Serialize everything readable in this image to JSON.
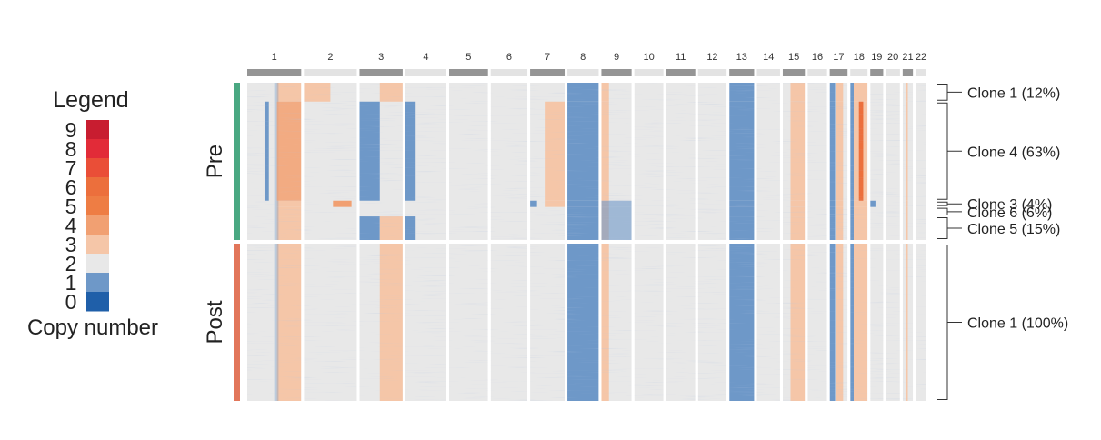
{
  "chart_data": {
    "type": "heatmap",
    "title": "",
    "xlabel": "",
    "ylabel": "",
    "legend": {
      "title": "Legend",
      "caption": "Copy number",
      "placement": "left",
      "levels": [
        {
          "value": "9",
          "color": "#c81d30"
        },
        {
          "value": "8",
          "color": "#e22b38"
        },
        {
          "value": "7",
          "color": "#ea4e37"
        },
        {
          "value": "6",
          "color": "#ec6f3c"
        },
        {
          "value": "5",
          "color": "#ee7d44"
        },
        {
          "value": "4",
          "color": "#f1a072"
        },
        {
          "value": "3",
          "color": "#f5c6a8"
        },
        {
          "value": "2",
          "color": "#e8e8e8"
        },
        {
          "value": "1",
          "color": "#6e98c8"
        },
        {
          "value": "0",
          "color": "#1f5fa9"
        }
      ]
    },
    "chromosomes": [
      {
        "label": "1",
        "rel": 1.0
      },
      {
        "label": "2",
        "rel": 0.98
      },
      {
        "label": "3",
        "rel": 0.8
      },
      {
        "label": "4",
        "rel": 0.76
      },
      {
        "label": "5",
        "rel": 0.72
      },
      {
        "label": "6",
        "rel": 0.68
      },
      {
        "label": "7",
        "rel": 0.64
      },
      {
        "label": "8",
        "rel": 0.58
      },
      {
        "label": "9",
        "rel": 0.56
      },
      {
        "label": "10",
        "rel": 0.54
      },
      {
        "label": "11",
        "rel": 0.54
      },
      {
        "label": "12",
        "rel": 0.53
      },
      {
        "label": "13",
        "rel": 0.46
      },
      {
        "label": "14",
        "rel": 0.43
      },
      {
        "label": "15",
        "rel": 0.41
      },
      {
        "label": "16",
        "rel": 0.36
      },
      {
        "label": "17",
        "rel": 0.33
      },
      {
        "label": "18",
        "rel": 0.32
      },
      {
        "label": "19",
        "rel": 0.24
      },
      {
        "label": "20",
        "rel": 0.26
      },
      {
        "label": "21",
        "rel": 0.19
      },
      {
        "label": "22",
        "rel": 0.2
      }
    ],
    "groups": [
      {
        "label": "Pre",
        "color": "#4aa882",
        "rel": 1.0
      },
      {
        "label": "Post",
        "color": "#e2765a",
        "rel": 1.0
      }
    ],
    "clones": [
      {
        "label": "Clone 1 (12%)",
        "group": "Pre",
        "share": 0.12
      },
      {
        "label": "Clone 4 (63%)",
        "group": "Pre",
        "share": 0.63
      },
      {
        "label": "Clone 3 (4%)",
        "group": "Pre",
        "share": 0.04
      },
      {
        "label": "Clone 6 (6%)",
        "group": "Pre",
        "share": 0.06
      },
      {
        "label": "Clone 5 (15%)",
        "group": "Pre",
        "share": 0.15
      },
      {
        "label": "Clone 1 (100%)",
        "group": "Post",
        "share": 1.0
      }
    ],
    "segments": [
      {
        "chr": "1",
        "x": [
          0.55,
          1.0
        ],
        "cn": 3,
        "clones": "all"
      },
      {
        "chr": "1",
        "x": [
          0.5,
          0.58
        ],
        "cn": 1,
        "clones": "all",
        "alpha": 0.35
      },
      {
        "chr": "1",
        "x": [
          0.55,
          1.0
        ],
        "cn": 4,
        "clones": [
          "Clone 4 (63%)"
        ],
        "alpha": 0.7
      },
      {
        "chr": "1",
        "x": [
          0.32,
          0.4
        ],
        "cn": 1,
        "clones": [
          "Clone 4 (63%)"
        ]
      },
      {
        "chr": "2",
        "x": [
          0.0,
          0.5
        ],
        "cn": 3,
        "clones": [
          "Clone 1 (12%)"
        ]
      },
      {
        "chr": "2",
        "x": [
          0.55,
          0.9
        ],
        "cn": 4,
        "clones": [
          "Clone 3 (4%)"
        ]
      },
      {
        "chr": "3",
        "x": [
          0.0,
          0.47
        ],
        "cn": 1,
        "clones": [
          "Clone 4 (63%)",
          "Clone 5 (15%)"
        ]
      },
      {
        "chr": "3",
        "x": [
          0.47,
          1.0
        ],
        "cn": 3,
        "clones": [
          "Clone 1 (12%)",
          "Clone 5 (15%)",
          "Clone 1 (100%)"
        ]
      },
      {
        "chr": "4",
        "x": [
          0.0,
          0.25
        ],
        "cn": 1,
        "clones": [
          "Clone 4 (63%)",
          "Clone 5 (15%)"
        ]
      },
      {
        "chr": "7",
        "x": [
          0.45,
          1.0
        ],
        "cn": 3,
        "clones": [
          "Clone 4 (63%)",
          "Clone 3 (4%)"
        ]
      },
      {
        "chr": "7",
        "x": [
          0.0,
          0.2
        ],
        "cn": 1,
        "clones": [
          "Clone 3 (4%)"
        ]
      },
      {
        "chr": "8",
        "x": [
          0.0,
          1.0
        ],
        "cn": 1,
        "clones": "all"
      },
      {
        "chr": "9",
        "x": [
          0.0,
          0.25
        ],
        "cn": 3,
        "clones": "all"
      },
      {
        "chr": "9",
        "x": [
          0.0,
          1.0
        ],
        "cn": 1,
        "clones": [
          "Clone 3 (4%)",
          "Clone 6 (6%)",
          "Clone 5 (15%)"
        ],
        "alpha": 0.6
      },
      {
        "chr": "13",
        "x": [
          0.0,
          1.0
        ],
        "cn": 1,
        "clones": "all"
      },
      {
        "chr": "15",
        "x": [
          0.35,
          1.0
        ],
        "cn": 3,
        "clones": "all"
      },
      {
        "chr": "17",
        "x": [
          0.0,
          0.3
        ],
        "cn": 1,
        "clones": "all"
      },
      {
        "chr": "17",
        "x": [
          0.35,
          0.75
        ],
        "cn": 3,
        "clones": "all"
      },
      {
        "chr": "18",
        "x": [
          0.0,
          0.2
        ],
        "cn": 1,
        "clones": "all"
      },
      {
        "chr": "18",
        "x": [
          0.2,
          1.0
        ],
        "cn": 3,
        "clones": "all"
      },
      {
        "chr": "18",
        "x": [
          0.5,
          0.75
        ],
        "cn": 6,
        "clones": [
          "Clone 4 (63%)"
        ]
      },
      {
        "chr": "19",
        "x": [
          0.0,
          0.4
        ],
        "cn": 1,
        "clones": [
          "Clone 3 (4%)"
        ]
      },
      {
        "chr": "21",
        "x": [
          0.3,
          0.5
        ],
        "cn": 3,
        "clones": "all"
      }
    ]
  }
}
